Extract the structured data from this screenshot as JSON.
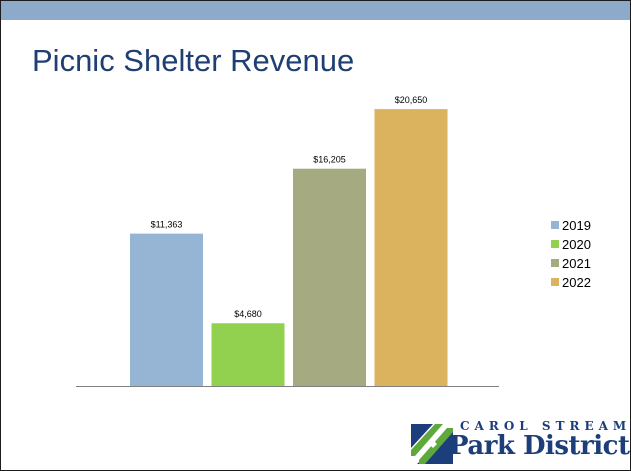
{
  "slide": {
    "title": "Picnic Shelter Revenue",
    "band_color": "#8eaacb",
    "title_color": "#1f3f73"
  },
  "logo": {
    "line1": "CAROL STREAM",
    "line2": "Park District",
    "text_color": "#1c3e7a",
    "mark_colors": [
      "#1c3e7a",
      "#5fa83c"
    ]
  },
  "chart_data": {
    "type": "bar",
    "categories": [
      "2019",
      "2020",
      "2021",
      "2022"
    ],
    "values": [
      11363,
      4680,
      16205,
      20650
    ],
    "data_labels": [
      "$11,363",
      "$4,680",
      "$16,205",
      "$20,650"
    ],
    "colors": [
      "#96b4d3",
      "#92d050",
      "#a5aa80",
      "#dbb25d"
    ],
    "title": "Picnic Shelter Revenue",
    "xlabel": "",
    "ylabel": "",
    "ylim": [
      0,
      22000
    ],
    "grid": false,
    "legend": {
      "position": "right",
      "entries": [
        "2019",
        "2020",
        "2021",
        "2022"
      ]
    }
  }
}
